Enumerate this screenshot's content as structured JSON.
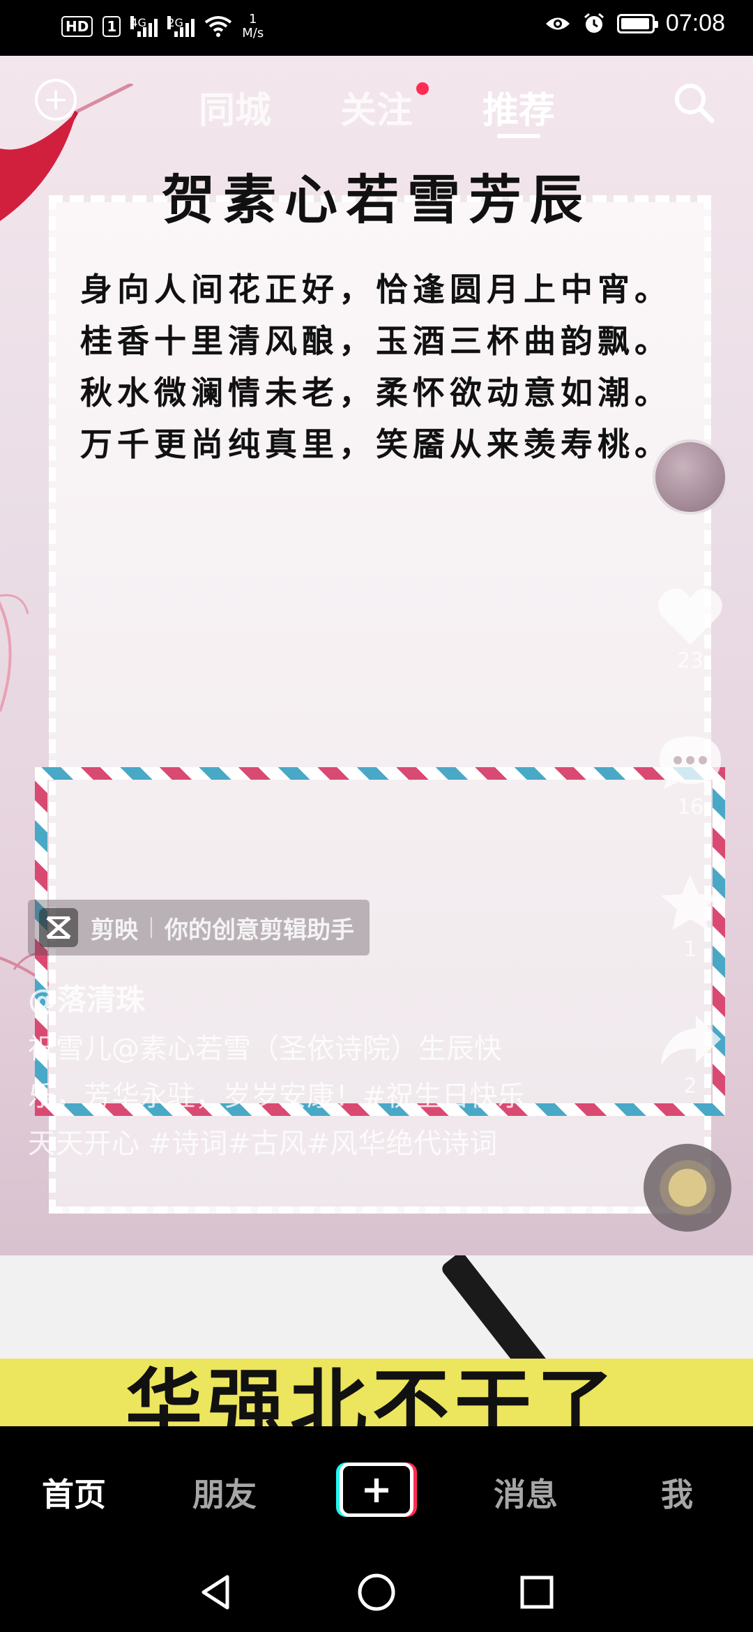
{
  "status_bar": {
    "hd_label": "HD",
    "sim_label": "1",
    "net1_label": "4G",
    "net2_label": "2G",
    "speed_value": "1",
    "speed_unit": "M/s",
    "time": "07:08",
    "battery_level": 0.95
  },
  "top_nav": {
    "tabs": [
      {
        "label": "同城"
      },
      {
        "label": "关注"
      },
      {
        "label": "推荐"
      }
    ],
    "active_tab": "推荐"
  },
  "video": {
    "poem_title": "贺素心若雪芳辰",
    "poem_lines": [
      "身向人间花正好，恰逢圆月上中宵。",
      "桂香十里清风酿，玉酒三杯曲韵飘。",
      "秋水微澜情未老，柔怀欲动意如潮。",
      "万千更尚纯真里，笑靥从来羡寿桃。"
    ],
    "capcut_app": "剪映",
    "capcut_slogan": "你的创意剪辑助手",
    "author": "@落清珠",
    "description": "祝雪儿@素心若雪（圣依诗院）生辰快乐，芳华永驻，岁岁安康！#祝生日快乐天天开心 #诗词#古风#风华绝代诗词"
  },
  "actions": {
    "likes": "23",
    "comments": "16",
    "favorites": "1",
    "shares": "2"
  },
  "next_video": {
    "title": "华强北不干了"
  },
  "tab_bar": {
    "home": "首页",
    "friends": "朋友",
    "create": "+",
    "messages": "消息",
    "me": "我"
  },
  "colors": {
    "accent_red": "#fe2c55",
    "accent_cyan": "#25f4ee",
    "banner_yellow": "#ece55e"
  }
}
